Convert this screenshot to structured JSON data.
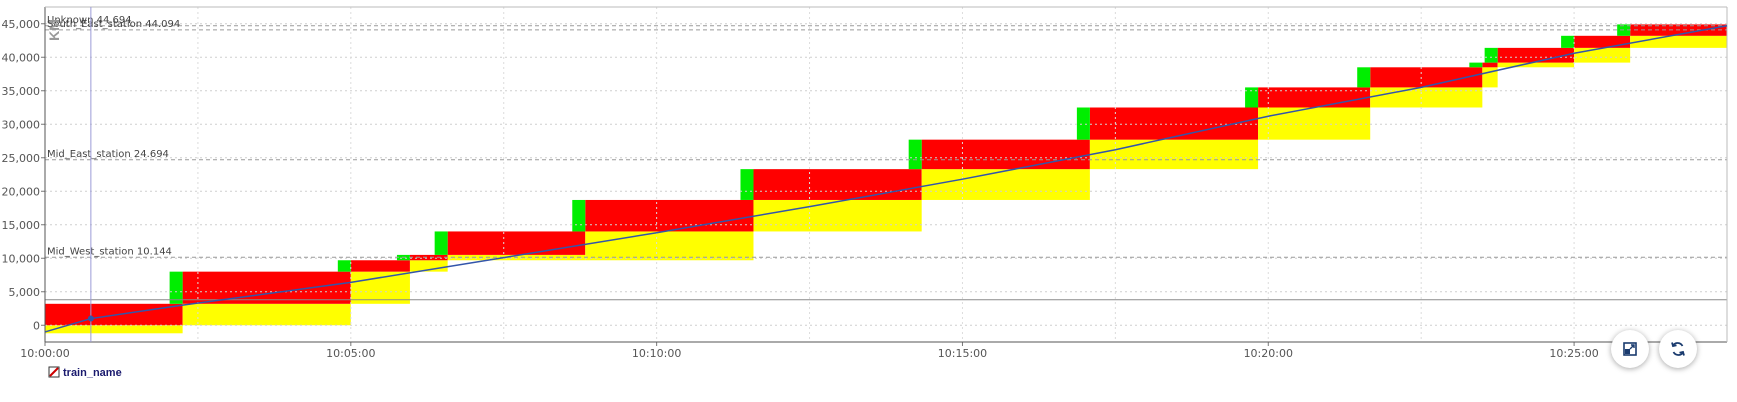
{
  "chart_data": {
    "type": "line",
    "ylabel": "KM",
    "ylim": [
      -2500,
      47500
    ],
    "xlim": [
      "10:00:00",
      "10:27:30"
    ],
    "y_ticks": [
      0,
      5000,
      10000,
      15000,
      20000,
      25000,
      30000,
      35000,
      40000,
      45000
    ],
    "y_tick_labels": [
      "0",
      "5,000",
      "10,000",
      "15,000",
      "20,000",
      "25,000",
      "30,000",
      "35,000",
      "40,000",
      "45,000"
    ],
    "x_ticks": [
      "10:00:00",
      "10:05:00",
      "10:10:00",
      "10:15:00",
      "10:20:00",
      "10:25:00"
    ],
    "grid": true,
    "stations": [
      {
        "name": "Unknown",
        "value": 44694,
        "label": "Unknown 44.694"
      },
      {
        "name": "South_East_station",
        "value": 44094,
        "label": "South_East_station 44.094"
      },
      {
        "name": "Mid_East_station",
        "value": 24694,
        "label": "Mid_East_station 24.694"
      },
      {
        "name": "Mid_West_station",
        "value": 10144,
        "label": "Mid_West_station 10.144"
      }
    ],
    "reference_line": 3800,
    "cursor_time": "10:00:45",
    "series": [
      {
        "name": "train_name",
        "x": [
          "10:00:00",
          "10:00:45",
          "10:02:15",
          "10:05:00",
          "10:07:30",
          "10:10:00",
          "10:12:30",
          "10:15:00",
          "10:17:30",
          "10:20:00",
          "10:22:30",
          "10:25:00",
          "10:27:30"
        ],
        "y": [
          -1000,
          1000,
          3000,
          6400,
          10100,
          13800,
          17700,
          21800,
          26200,
          31200,
          35500,
          40600,
          44700
        ]
      }
    ],
    "blocks": [
      {
        "t0": "10:00:00",
        "t1": "10:02:15",
        "red": [
          0,
          3200
        ],
        "yellow": [
          -1200,
          0
        ],
        "green": null
      },
      {
        "t0": "10:02:15",
        "t1": "10:05:00",
        "red": [
          3200,
          8000
        ],
        "yellow": [
          0,
          3200
        ],
        "green": [
          3200,
          8000
        ]
      },
      {
        "t0": "10:05:00",
        "t1": "10:05:58",
        "red": [
          8000,
          9700
        ],
        "yellow": [
          3200,
          8000
        ],
        "green": [
          8000,
          9700
        ]
      },
      {
        "t0": "10:05:58",
        "t1": "10:06:35",
        "red": [
          9700,
          10500
        ],
        "yellow": [
          8000,
          9700
        ],
        "green": [
          9700,
          10500
        ]
      },
      {
        "t0": "10:06:35",
        "t1": "10:08:50",
        "red": [
          10500,
          14000
        ],
        "yellow": [
          9700,
          10500
        ],
        "green": [
          10500,
          14000
        ]
      },
      {
        "t0": "10:08:50",
        "t1": "10:11:35",
        "red": [
          14000,
          18700
        ],
        "yellow": [
          9700,
          14000
        ],
        "green": [
          14000,
          18700
        ]
      },
      {
        "t0": "10:11:35",
        "t1": "10:14:20",
        "red": [
          18700,
          23300
        ],
        "yellow": [
          14000,
          18700
        ],
        "green": [
          18700,
          23300
        ]
      },
      {
        "t0": "10:14:20",
        "t1": "10:17:05",
        "red": [
          23300,
          27700
        ],
        "yellow": [
          18700,
          23300
        ],
        "green": [
          23300,
          27700
        ]
      },
      {
        "t0": "10:17:05",
        "t1": "10:19:50",
        "red": [
          27700,
          32500
        ],
        "yellow": [
          23300,
          27700
        ],
        "green": [
          27700,
          32500
        ]
      },
      {
        "t0": "10:19:50",
        "t1": "10:21:40",
        "red": [
          32500,
          35500
        ],
        "yellow": [
          27700,
          32500
        ],
        "green": [
          32500,
          35500
        ]
      },
      {
        "t0": "10:21:40",
        "t1": "10:23:30",
        "red": [
          35500,
          38500
        ],
        "yellow": [
          32500,
          35500
        ],
        "green": [
          35500,
          38500
        ]
      },
      {
        "t0": "10:23:30",
        "t1": "10:23:45",
        "red": [
          38500,
          39200
        ],
        "yellow": [
          35500,
          38500
        ],
        "green": [
          38500,
          39200
        ]
      },
      {
        "t0": "10:23:45",
        "t1": "10:25:00",
        "red": [
          39200,
          41400
        ],
        "yellow": [
          38500,
          39200
        ],
        "green": [
          39200,
          41400
        ]
      },
      {
        "t0": "10:25:00",
        "t1": "10:25:55",
        "red": [
          41400,
          43200
        ],
        "yellow": [
          39200,
          41400
        ],
        "green": [
          41400,
          43200
        ]
      },
      {
        "t0": "10:25:55",
        "t1": "10:27:30",
        "red": [
          43200,
          44900
        ],
        "yellow": [
          41400,
          43200
        ],
        "green": [
          43200,
          44900
        ]
      }
    ]
  },
  "legend": {
    "label": "train_name"
  },
  "controls": {
    "fit_icon": "fit-to-screen-icon",
    "refresh_icon": "refresh-icon"
  }
}
